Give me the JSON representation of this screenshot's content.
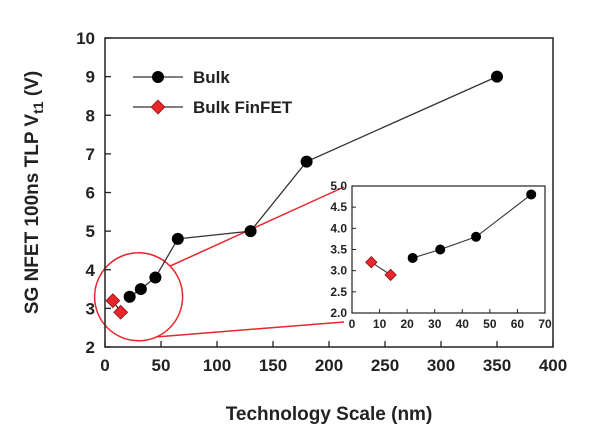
{
  "chart_data": [
    {
      "type": "line",
      "role": "main",
      "title": "",
      "xlabel": "Technology Scale (nm)",
      "ylabel_main": "SG NFET 100ns TLP V",
      "ylabel_sub": "t1",
      "ylabel_unit": " (V)",
      "xlim": [
        0,
        400
      ],
      "ylim": [
        2,
        10
      ],
      "xticks": [
        "0",
        "50",
        "100",
        "150",
        "200",
        "250",
        "300",
        "350",
        "400"
      ],
      "yticks": [
        "2",
        "3",
        "4",
        "5",
        "6",
        "7",
        "8",
        "9",
        "10"
      ],
      "legend_position": "top-left",
      "grid": false,
      "series": [
        {
          "name": "Bulk",
          "marker": "circle",
          "color": "#000000",
          "points": [
            [
              22,
              3.3
            ],
            [
              32,
              3.5
            ],
            [
              45,
              3.8
            ],
            [
              65,
              4.8
            ],
            [
              130,
              5.0
            ],
            [
              180,
              6.8
            ],
            [
              350,
              9.0
            ]
          ]
        },
        {
          "name": "Bulk FinFET",
          "marker": "diamond",
          "color": "#e8262b",
          "points": [
            [
              7,
              3.2
            ],
            [
              14,
              2.9
            ]
          ]
        }
      ]
    },
    {
      "type": "line",
      "role": "inset",
      "xlim": [
        0,
        70
      ],
      "ylim": [
        2.0,
        5.0
      ],
      "xticks": [
        "0",
        "10",
        "20",
        "30",
        "40",
        "50",
        "60",
        "70"
      ],
      "yticks": [
        "2.0",
        "2.5",
        "3.0",
        "3.5",
        "4.0",
        "4.5",
        "5.0"
      ],
      "series": [
        {
          "name": "Bulk",
          "marker": "circle",
          "color": "#000000",
          "points": [
            [
              22,
              3.3
            ],
            [
              32,
              3.5
            ],
            [
              45,
              3.8
            ],
            [
              65,
              4.8
            ]
          ]
        },
        {
          "name": "Bulk FinFET",
          "marker": "diamond",
          "color": "#e8262b",
          "points": [
            [
              7,
              3.2
            ],
            [
              14,
              2.9
            ]
          ]
        }
      ]
    }
  ],
  "colors": {
    "zoom": "#e8262b",
    "line": "#333333",
    "axis": "#222222"
  }
}
